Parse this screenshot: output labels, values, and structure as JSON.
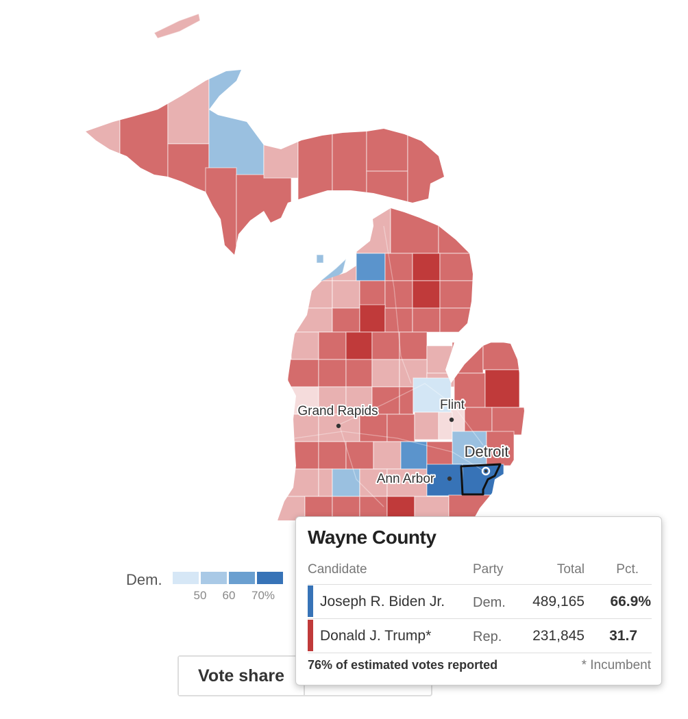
{
  "map": {
    "cities": [
      {
        "name": "Grand Rapids"
      },
      {
        "name": "Flint"
      },
      {
        "name": "Detroit"
      },
      {
        "name": "Ann Arbor"
      }
    ],
    "colors": {
      "rep_light": "#e8b1b1",
      "rep_mid": "#d46c6c",
      "rep_dark": "#c03a3a",
      "dem_light": "#d3e6f5",
      "dem_mid": "#9ac0e0",
      "dem_strong": "#5b94cc",
      "dem_dark": "#3773b7",
      "highlight_outline": "#111111"
    },
    "highlighted_county": "Wayne County"
  },
  "legend": {
    "label": "Dem.",
    "ticks": [
      "50",
      "60",
      "70%"
    ],
    "swatches": [
      "#d6e7f6",
      "#a9c9e6",
      "#6a9fd0",
      "#3773b7"
    ]
  },
  "toggle": {
    "label": "Vote share"
  },
  "tooltip": {
    "title": "Wayne County",
    "headers": {
      "candidate": "Candidate",
      "party": "Party",
      "total": "Total",
      "pct": "Pct."
    },
    "rows": [
      {
        "candidate": "Joseph R. Biden Jr.",
        "party": "Dem.",
        "total": "489,165",
        "pct": "66.9%",
        "color": "#3773b7"
      },
      {
        "candidate": "Donald J. Trump*",
        "party": "Rep.",
        "total": "231,845",
        "pct": "31.7",
        "color": "#c03a3a"
      }
    ],
    "reporting": "76% of estimated votes reported",
    "note": "* Incumbent"
  }
}
